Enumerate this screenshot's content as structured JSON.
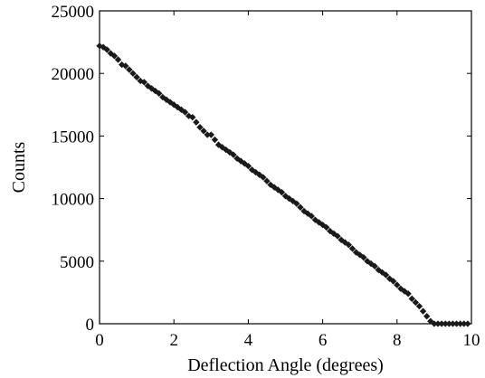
{
  "chart_data": {
    "type": "scatter",
    "title": "",
    "xlabel": "Deflection Angle (degrees)",
    "ylabel": "Counts",
    "xlim": [
      0,
      10
    ],
    "ylim": [
      0,
      25000
    ],
    "xticks": [
      "0",
      "2",
      "4",
      "6",
      "8",
      "10"
    ],
    "yticks": [
      "0",
      "5000",
      "10000",
      "15000",
      "20000",
      "25000"
    ],
    "grid": false,
    "legend": "none",
    "marker_color": "#1a1a1a",
    "series": [
      {
        "x": [
          0.0,
          0.1,
          0.2,
          0.3,
          0.4,
          0.5,
          0.6,
          0.7,
          0.8,
          0.9,
          1.0,
          1.1,
          1.2,
          1.3,
          1.4,
          1.5,
          1.6,
          1.7,
          1.8,
          1.9,
          2.0,
          2.1,
          2.2,
          2.3,
          2.4,
          2.5,
          2.6,
          2.7,
          2.8,
          2.9,
          3.0,
          3.1,
          3.2,
          3.3,
          3.4,
          3.5,
          3.6,
          3.7,
          3.8,
          3.9,
          4.0,
          4.1,
          4.2,
          4.3,
          4.4,
          4.5,
          4.6,
          4.7,
          4.8,
          4.9,
          5.0,
          5.1,
          5.2,
          5.3,
          5.4,
          5.5,
          5.6,
          5.7,
          5.8,
          5.9,
          6.0,
          6.1,
          6.2,
          6.3,
          6.4,
          6.5,
          6.6,
          6.7,
          6.8,
          6.9,
          7.0,
          7.1,
          7.2,
          7.3,
          7.4,
          7.5,
          7.6,
          7.7,
          7.8,
          7.9,
          8.0,
          8.1,
          8.2,
          8.3,
          8.4,
          8.5,
          8.6,
          8.7,
          8.8,
          8.9,
          9.0,
          9.1,
          9.2,
          9.3,
          9.4,
          9.5,
          9.6,
          9.7,
          9.8,
          9.9
        ],
        "y": [
          22200,
          22100,
          21900,
          21600,
          21400,
          21100,
          20700,
          20600,
          20300,
          20000,
          19700,
          19400,
          19300,
          19000,
          18800,
          18600,
          18400,
          18100,
          17900,
          17700,
          17500,
          17300,
          17100,
          16900,
          16600,
          16500,
          16100,
          15700,
          15400,
          15100,
          15100,
          14700,
          14300,
          14100,
          13900,
          13700,
          13500,
          13200,
          13000,
          12800,
          12600,
          12300,
          12100,
          11900,
          11700,
          11400,
          11100,
          10900,
          10700,
          10500,
          10200,
          10000,
          9800,
          9600,
          9300,
          9000,
          8800,
          8600,
          8300,
          8100,
          7900,
          7700,
          7400,
          7200,
          7000,
          6700,
          6500,
          6300,
          6000,
          5700,
          5500,
          5300,
          5000,
          4800,
          4600,
          4300,
          4100,
          3900,
          3600,
          3400,
          3100,
          2800,
          2600,
          2400,
          2000,
          1700,
          1400,
          1000,
          600,
          200,
          0,
          0,
          0,
          0,
          0,
          0,
          0,
          0,
          0,
          0
        ]
      }
    ]
  }
}
